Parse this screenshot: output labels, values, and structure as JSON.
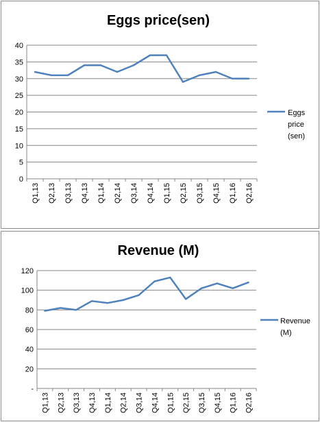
{
  "chart_data": [
    {
      "type": "line",
      "title": "Eggs price(sen)",
      "xlabel": "",
      "ylabel": "",
      "categories": [
        "Q1,13",
        "Q2,13",
        "Q3,13",
        "Q4,13",
        "Q1,14",
        "Q2,14",
        "Q3,14",
        "Q4,14",
        "Q1,15",
        "Q2,15",
        "Q3,15",
        "Q4,15",
        "Q1,16",
        "Q2,16"
      ],
      "series": [
        {
          "name": "Eggs price (sen)",
          "color": "#4f81bd",
          "values": [
            32,
            31,
            31,
            34,
            34,
            32,
            34,
            37,
            37,
            29,
            31,
            32,
            30,
            30
          ]
        }
      ],
      "ylim": [
        0,
        40
      ],
      "yticks": [
        "0",
        "5",
        "10",
        "15",
        "20",
        "25",
        "30",
        "35",
        "40"
      ],
      "grid": true,
      "legend_position": "right"
    },
    {
      "type": "line",
      "title": "Revenue (M)",
      "xlabel": "",
      "ylabel": "",
      "categories": [
        "Q1,13",
        "Q2,13",
        "Q3,13",
        "Q4,13",
        "Q1,14",
        "Q2,14",
        "Q3,14",
        "Q4,14",
        "Q1,15",
        "Q2,15",
        "Q3,15",
        "Q4,15",
        "Q1,16",
        "Q2,16"
      ],
      "series": [
        {
          "name": "Revenue (M)",
          "color": "#4f81bd",
          "values": [
            79,
            82,
            80,
            89,
            87,
            90,
            95,
            109,
            113,
            91,
            102,
            107,
            102,
            108
          ]
        }
      ],
      "ylim": [
        0,
        120
      ],
      "yticks": [
        "-",
        "20",
        "40",
        "60",
        "80",
        "100",
        "120"
      ],
      "grid": true,
      "legend_position": "right"
    }
  ]
}
